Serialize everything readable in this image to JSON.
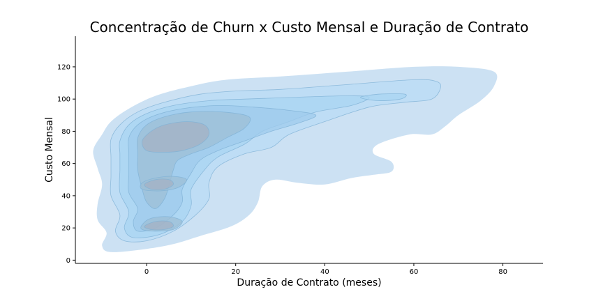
{
  "chart_data": {
    "type": "kde_density_contour",
    "title": "Concentração de Churn x Custo Mensal e Duração de Contrato",
    "xlabel": "Duração de Contrato (meses)",
    "ylabel": "Custo Mensal",
    "xlim": [
      -16,
      89
    ],
    "ylim": [
      -2,
      139
    ],
    "xticks": [
      0,
      20,
      40,
      60,
      80
    ],
    "yticks": [
      0,
      20,
      40,
      60,
      80,
      100,
      120
    ],
    "grid": false,
    "fill_colors": [
      "#c9dff2",
      "#b9dbf5",
      "#a8d4f2",
      "#9fcbec",
      "#9dbfd6",
      "#a4b2c4"
    ],
    "line_color": "#7fb2d6",
    "levels": [
      {
        "level": 1,
        "polygons": [
          [
            [
              -12,
              68
            ],
            [
              -10,
              78
            ],
            [
              -8,
              86
            ],
            [
              -4,
              94
            ],
            [
              2,
              102
            ],
            [
              10,
              108
            ],
            [
              18,
              112
            ],
            [
              30,
              114
            ],
            [
              45,
              117
            ],
            [
              60,
              120
            ],
            [
              70,
              120
            ],
            [
              78,
              117
            ],
            [
              78,
              108
            ],
            [
              75,
              99
            ],
            [
              70,
              90
            ],
            [
              67,
              83
            ],
            [
              64,
              78
            ],
            [
              59,
              78
            ],
            [
              52,
              72
            ],
            [
              51,
              66
            ],
            [
              55,
              61
            ],
            [
              55,
              55
            ],
            [
              51,
              53
            ],
            [
              46,
              51
            ],
            [
              40,
              47
            ],
            [
              34,
              48
            ],
            [
              29,
              50
            ],
            [
              26,
              46
            ],
            [
              25,
              36
            ],
            [
              23,
              28
            ],
            [
              19,
              21
            ],
            [
              12,
              15
            ],
            [
              6,
              10
            ],
            [
              0,
              7
            ],
            [
              -8,
              5
            ],
            [
              -10,
              9
            ],
            [
              -9,
              17
            ],
            [
              -11,
              25
            ],
            [
              -11,
              35
            ],
            [
              -10,
              47
            ],
            [
              -11,
              57
            ]
          ]
        ]
      },
      {
        "level": 2,
        "polygons": [
          [
            [
              -8,
              75
            ],
            [
              -6,
              84
            ],
            [
              -2,
              92
            ],
            [
              4,
              98
            ],
            [
              12,
              103
            ],
            [
              20,
              105
            ],
            [
              30,
              106
            ],
            [
              45,
              109
            ],
            [
              60,
              112
            ],
            [
              65,
              111
            ],
            [
              66,
              107
            ],
            [
              64,
              100
            ],
            [
              58,
              98
            ],
            [
              50,
              95
            ],
            [
              40,
              86
            ],
            [
              32,
              78
            ],
            [
              28,
              70
            ],
            [
              22,
              66
            ],
            [
              16,
              58
            ],
            [
              14,
              48
            ],
            [
              14,
              38
            ],
            [
              11,
              28
            ],
            [
              6,
              18
            ],
            [
              0,
              12
            ],
            [
              -5,
              12
            ],
            [
              -7,
              18
            ],
            [
              -6,
              28
            ],
            [
              -8,
              40
            ],
            [
              -8,
              52
            ],
            [
              -8,
              64
            ]
          ]
        ]
      },
      {
        "level": 3,
        "polygons": [
          [
            [
              -6,
              74
            ],
            [
              -4,
              84
            ],
            [
              0,
              91
            ],
            [
              6,
              96
            ],
            [
              14,
              99
            ],
            [
              22,
              100
            ],
            [
              32,
              101
            ],
            [
              45,
              102
            ],
            [
              50,
              101
            ],
            [
              46,
              96
            ],
            [
              38,
              92
            ],
            [
              32,
              86
            ],
            [
              26,
              80
            ],
            [
              22,
              72
            ],
            [
              16,
              64
            ],
            [
              13,
              56
            ],
            [
              10,
              44
            ],
            [
              10,
              34
            ],
            [
              8,
              24
            ],
            [
              3,
              16
            ],
            [
              -3,
              14
            ],
            [
              -5,
              20
            ],
            [
              -4,
              30
            ],
            [
              -6,
              42
            ],
            [
              -6,
              56
            ],
            [
              -6,
              66
            ]
          ]
        ],
        "_second": "extra"
      },
      {
        "level": 4,
        "polygons": [
          [
            [
              -4,
              76
            ],
            [
              -2,
              84
            ],
            [
              2,
              90
            ],
            [
              8,
              94
            ],
            [
              16,
              96
            ],
            [
              24,
              95
            ],
            [
              32,
              93
            ],
            [
              38,
              90
            ],
            [
              34,
              85
            ],
            [
              28,
              80
            ],
            [
              22,
              74
            ],
            [
              16,
              68
            ],
            [
              12,
              62
            ],
            [
              10,
              54
            ],
            [
              8,
              44
            ],
            [
              8,
              36
            ],
            [
              6,
              28
            ],
            [
              2,
              20
            ],
            [
              -2,
              18
            ],
            [
              -3,
              24
            ],
            [
              -2,
              32
            ],
            [
              -4,
              42
            ],
            [
              -4,
              54
            ],
            [
              -4,
              66
            ]
          ]
        ]
      },
      {
        "level": 5,
        "polygons": [
          [
            [
              -2,
              76
            ],
            [
              0,
              84
            ],
            [
              4,
              89
            ],
            [
              10,
              92
            ],
            [
              17,
              92
            ],
            [
              23,
              89
            ],
            [
              22,
              82
            ],
            [
              18,
              76
            ],
            [
              14,
              70
            ],
            [
              10,
              66
            ],
            [
              7,
              62
            ],
            [
              6,
              56
            ],
            [
              5,
              46
            ],
            [
              4,
              38
            ],
            [
              2,
              32
            ],
            [
              0,
              36
            ],
            [
              -1,
              44
            ],
            [
              -2,
              56
            ],
            [
              -2,
              66
            ]
          ]
        ]
      },
      {
        "level": 6,
        "polygons": [
          [
            [
              -1,
              74
            ],
            [
              1,
              80
            ],
            [
              4,
              84
            ],
            [
              9,
              86
            ],
            [
              13,
              84
            ],
            [
              14,
              78
            ],
            [
              12,
              72
            ],
            [
              8,
              68
            ],
            [
              4,
              67
            ],
            [
              0,
              68
            ]
          ]
        ]
      }
    ],
    "extra_regions": [
      {
        "level": 3,
        "polygon": [
          [
            48,
            101
          ],
          [
            52,
            103
          ],
          [
            58,
            103
          ],
          [
            57,
            100
          ],
          [
            52,
            99
          ]
        ]
      },
      {
        "level": 5,
        "polygon": [
          [
            -1,
            48
          ],
          [
            2,
            51
          ],
          [
            6,
            52
          ],
          [
            9,
            50
          ],
          [
            7,
            45
          ],
          [
            3,
            43
          ],
          [
            -1,
            44
          ]
        ]
      },
      {
        "level": 6,
        "polygon": [
          [
            -0.5,
            47
          ],
          [
            2,
            50
          ],
          [
            5,
            50
          ],
          [
            6,
            47
          ],
          [
            4,
            44
          ],
          [
            1,
            44
          ]
        ]
      },
      {
        "level": 5,
        "polygon": [
          [
            -1,
            22
          ],
          [
            1,
            26
          ],
          [
            5,
            27
          ],
          [
            8,
            24
          ],
          [
            6,
            19
          ],
          [
            2,
            18
          ],
          [
            -1,
            19
          ]
        ]
      },
      {
        "level": 6,
        "polygon": [
          [
            -0.5,
            21
          ],
          [
            2,
            24
          ],
          [
            5,
            24
          ],
          [
            6,
            21
          ],
          [
            4,
            19
          ],
          [
            1,
            19
          ]
        ]
      }
    ]
  }
}
